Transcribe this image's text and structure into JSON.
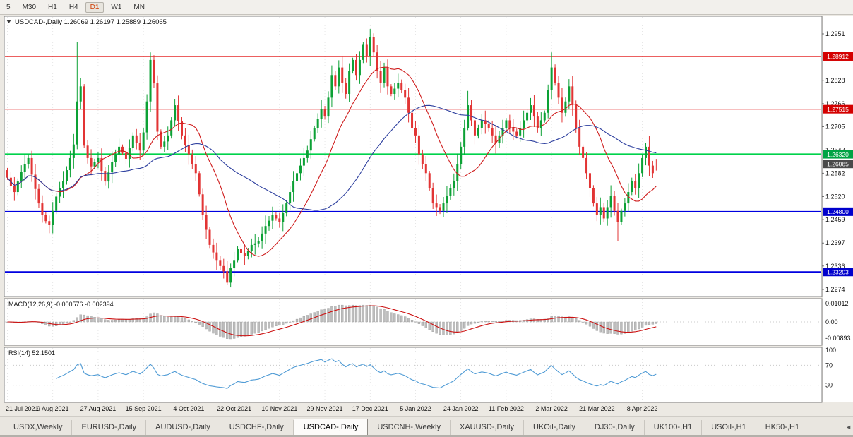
{
  "toolbar": {
    "timeframes": [
      {
        "label": "5",
        "active": false
      },
      {
        "label": "M30",
        "active": false
      },
      {
        "label": "H1",
        "active": false
      },
      {
        "label": "H4",
        "active": false
      },
      {
        "label": "D1",
        "active": true
      },
      {
        "label": "W1",
        "active": false
      },
      {
        "label": "MN",
        "active": false
      }
    ]
  },
  "tabs": {
    "items": [
      {
        "label": "USDX,Weekly",
        "active": false
      },
      {
        "label": "EURUSD-,Daily",
        "active": false
      },
      {
        "label": "AUDUSD-,Daily",
        "active": false
      },
      {
        "label": "USDCHF-,Daily",
        "active": false
      },
      {
        "label": "USDCAD-,Daily",
        "active": true
      },
      {
        "label": "USDCNH-,Weekly",
        "active": false
      },
      {
        "label": "XAUUSD-,Daily",
        "active": false
      },
      {
        "label": "UKOil-,Daily",
        "active": false
      },
      {
        "label": "DJ30-,Daily",
        "active": false
      },
      {
        "label": "UK100-,H1",
        "active": false
      },
      {
        "label": "USOil-,H1",
        "active": false
      },
      {
        "label": "HK50-,H1",
        "active": false
      }
    ],
    "scroll_left_icon": "◄"
  },
  "chart_data": {
    "type": "candlestick",
    "title": "USDCAD-,Daily",
    "title_marker": "▼",
    "ohlc_text": "1.26069 1.26197 1.25889 1.26065",
    "ohlc_today": {
      "open": 1.26069,
      "high": 1.26197,
      "low": 1.25889,
      "close": 1.26065
    },
    "current_price": 1.26065,
    "x_labels": [
      "21 Jul 2021",
      "9 Aug 2021",
      "27 Aug 2021",
      "15 Sep 2021",
      "4 Oct 2021",
      "22 Oct 2021",
      "10 Nov 2021",
      "29 Nov 2021",
      "17 Dec 2021",
      "5 Jan 2022",
      "24 Jan 2022",
      "11 Feb 2022",
      "2 Mar 2022",
      "21 Mar 2022",
      "8 Apr 2022"
    ],
    "bars_per_label": 13,
    "price_axis_ticks": [
      1.2951,
      1.2828,
      1.2766,
      1.2705,
      1.2643,
      1.2582,
      1.252,
      1.2459,
      1.2397,
      1.2336,
      1.2274
    ],
    "price_badges": [
      {
        "value": 1.28912,
        "label": "1.28912",
        "color": "#d40000"
      },
      {
        "value": 1.27515,
        "label": "1.27515",
        "color": "#d40000"
      },
      {
        "value": 1.2632,
        "label": "1.26320",
        "color": "#00a344"
      },
      {
        "value": 1.26065,
        "label": "1.26065",
        "color": "#4a4a4a"
      },
      {
        "value": 1.248,
        "label": "1.24800",
        "color": "#0000cc"
      },
      {
        "value": 1.23203,
        "label": "1.23203",
        "color": "#0000cc"
      }
    ],
    "h_lines": [
      {
        "value": 1.28912,
        "color": "#e00000",
        "width": 1.2
      },
      {
        "value": 1.27515,
        "color": "#e00000",
        "width": 1.2
      },
      {
        "value": 1.2632,
        "color": "#00d24b",
        "width": 2.4
      },
      {
        "value": 1.248,
        "color": "#0000e0",
        "width": 2
      },
      {
        "value": 1.23203,
        "color": "#0000e0",
        "width": 2
      }
    ],
    "first_open": 1.259,
    "closes": [
      1.257,
      1.2548,
      1.2532,
      1.256,
      1.2586,
      1.2605,
      1.2622,
      1.2578,
      1.254,
      1.2502,
      1.2472,
      1.2455,
      1.2446,
      1.2482,
      1.252,
      1.2542,
      1.2562,
      1.259,
      1.2622,
      1.2658,
      1.2772,
      1.2812,
      1.2655,
      1.2622,
      1.26,
      1.2612,
      1.2622,
      1.2588,
      1.256,
      1.2584,
      1.2612,
      1.2632,
      1.2652,
      1.2636,
      1.262,
      1.2648,
      1.2682,
      1.2662,
      1.2642,
      1.269,
      1.2772,
      1.2882,
      1.282,
      1.2692,
      1.2652,
      1.2666,
      1.2682,
      1.2722,
      1.2762,
      1.272,
      1.2682,
      1.2656,
      1.2632,
      1.2606,
      1.2582,
      1.2526,
      1.2472,
      1.2432,
      1.2392,
      1.2372,
      1.2352,
      1.2336,
      1.2322,
      1.2292,
      1.233,
      1.2352,
      1.2382,
      1.237,
      1.2362,
      1.2376,
      1.2392,
      1.2396,
      1.2402,
      1.2422,
      1.2442,
      1.2456,
      1.2472,
      1.2462,
      1.2452,
      1.2476,
      1.2502,
      1.2532,
      1.2562,
      1.2582,
      1.2602,
      1.2622,
      1.2642,
      1.2672,
      1.2702,
      1.2726,
      1.2752,
      1.2732,
      1.2782,
      1.2842,
      1.2812,
      1.2862,
      1.2822,
      1.2792,
      1.2852,
      1.2882,
      1.2842,
      1.2882,
      1.2922,
      1.2892,
      1.2942,
      1.2902,
      1.2852,
      1.2822,
      1.2862,
      1.2812,
      1.2792,
      1.2806,
      1.2822,
      1.2802,
      1.2782,
      1.2742,
      1.2702,
      1.2682,
      1.2632,
      1.2606,
      1.2582,
      1.2542,
      1.2502,
      1.2492,
      1.2482,
      1.2502,
      1.2522,
      1.2542,
      1.2562,
      1.2606,
      1.2652,
      1.2702,
      1.2762,
      1.2722,
      1.2682,
      1.2702,
      1.2722,
      1.2712,
      1.2702,
      1.2682,
      1.2662,
      1.2682,
      1.2702,
      1.2722,
      1.2702,
      1.2692,
      1.2682,
      1.2702,
      1.2722,
      1.2742,
      1.2762,
      1.2732,
      1.2702,
      1.2722,
      1.2742,
      1.2802,
      1.2862,
      1.2822,
      1.2782,
      1.2742,
      1.2772,
      1.2812,
      1.2762,
      1.2702,
      1.2652,
      1.2622,
      1.2582,
      1.2542,
      1.2502,
      1.2472,
      1.2492,
      1.2462,
      1.2492,
      1.2522,
      1.2482,
      1.2452,
      1.2482,
      1.2502,
      1.2532,
      1.2562,
      1.2542,
      1.2582,
      1.2622,
      1.2652,
      1.2602,
      1.2582,
      1.26065
    ],
    "wick_overrides": {
      "12": {
        "l": 1.2423
      },
      "20": {
        "h": 1.293
      },
      "41": {
        "h": 1.2902
      },
      "63": {
        "l": 1.2287
      },
      "104": {
        "h": 1.2964
      },
      "132": {
        "h": 1.28
      },
      "156": {
        "h": 1.2902
      },
      "175": {
        "l": 1.2403
      },
      "183": {
        "h": 1.2662
      }
    },
    "moving_averages": [
      {
        "period": 15,
        "color": "#cf1d1d"
      },
      {
        "period": 40,
        "color": "#2c3e9e"
      }
    ],
    "macd": {
      "label": "MACD(12,26,9)",
      "values_text": "-0.000576 -0.002394",
      "fast": 12,
      "slow": 26,
      "signal": 9,
      "axis_labels": [
        {
          "value": 0.01012,
          "text": "0.01012"
        },
        {
          "value": 0,
          "text": "0.00"
        },
        {
          "value": -0.00893,
          "text": "-0.00893"
        }
      ],
      "hist_color": "#bdbdbd",
      "signal_color": "#cc1111"
    },
    "rsi": {
      "label": "RSI(14)",
      "value_text": "52.1501",
      "period": 14,
      "axis_labels": [
        {
          "value": 100,
          "text": "100"
        },
        {
          "value": 70,
          "text": "70"
        },
        {
          "value": 30,
          "text": "30"
        }
      ],
      "level_lines": [
        70,
        30
      ],
      "line_color": "#4f9bd5"
    },
    "colors": {
      "up": "#0ca135",
      "down": "#e23434",
      "grid": "#dcdcdc",
      "panel_border": "#808080",
      "window_bg": "#ece9e3",
      "axis_text": "#111111"
    }
  }
}
